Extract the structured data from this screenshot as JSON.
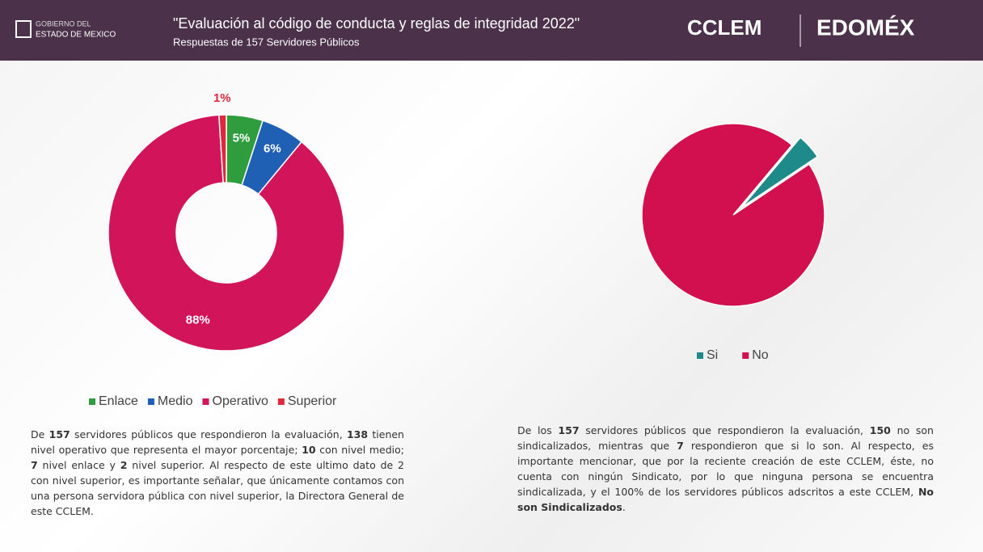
{
  "header": {
    "logo": [
      "GOBIERNO DEL",
      "ESTADO DE MEXICO"
    ],
    "title": "\"Evaluación al código de conducta y reglas de integridad 2022\"",
    "subtitle": "Respuestas de 157 Servidores Públicos",
    "brand1": "CCLEM",
    "brand2": "EDOMÉX"
  },
  "chart_data": [
    {
      "type": "donut",
      "categories": [
        "Enlace",
        "Medio",
        "Operativo",
        "Superior"
      ],
      "values": [
        5,
        6,
        88,
        1
      ],
      "value_labels": [
        "5%",
        "6%",
        "88%",
        "1%"
      ],
      "colors": [
        "#2f9d3e",
        "#1f5fb4",
        "#d2145a",
        "#e0283c"
      ],
      "legend": "bottom"
    },
    {
      "type": "pie",
      "categories": [
        "Si",
        "No"
      ],
      "values": [
        4.5,
        95.5
      ],
      "colors": [
        "#1f8a8a",
        "#d2104f"
      ],
      "legend": "bottom"
    }
  ],
  "paragraphs": [
    {
      "runs": [
        {
          "text": "De "
        },
        {
          "text": "157",
          "bold": true
        },
        {
          "text": " servidores públicos que respondieron la evaluación, "
        },
        {
          "text": "138",
          "bold": true
        },
        {
          "text": " tienen nivel operativo que representa el mayor porcentaje; "
        },
        {
          "text": "10",
          "bold": true
        },
        {
          "text": " con nivel medio; "
        },
        {
          "text": "7",
          "bold": true
        },
        {
          "text": " nivel enlace y "
        },
        {
          "text": "2",
          "bold": true
        },
        {
          "text": " nivel superior. Al respecto de este ultimo dato de 2 con nivel superior, es importante señalar, que únicamente contamos con una persona servidora pública con nivel superior, la Directora General de este CCLEM."
        }
      ]
    },
    {
      "runs": [
        {
          "text": "De los "
        },
        {
          "text": "157",
          "bold": true
        },
        {
          "text": " servidores públicos que respondieron la evaluación, "
        },
        {
          "text": "150",
          "bold": true
        },
        {
          "text": " no son sindicalizados, mientras que "
        },
        {
          "text": "7",
          "bold": true
        },
        {
          "text": " respondieron que si lo son. Al respecto, es importante mencionar, que por la reciente creación de este CCLEM, éste, no cuenta con ningún Sindicato, por lo que ninguna persona se encuentra sindicalizada, y el 100% de los servidores públicos adscritos a este CCLEM, "
        },
        {
          "text": "No son Sindicalizados",
          "bold": true
        },
        {
          "text": "."
        }
      ]
    }
  ]
}
